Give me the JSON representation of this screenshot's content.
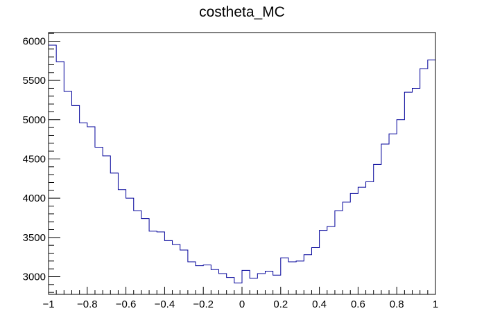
{
  "chart_data": {
    "type": "histogram-step",
    "title": "costheta_MC",
    "xlabel": "",
    "ylabel": "",
    "xlim": [
      -1,
      1
    ],
    "ylim": [
      2775,
      6110
    ],
    "x_ticks": [
      -1,
      -0.8,
      -0.6,
      -0.4,
      -0.2,
      0,
      0.2,
      0.4,
      0.6,
      0.8,
      1
    ],
    "x_tick_labels": [
      "−1",
      "−0.8",
      "−0.6",
      "−0.4",
      "−0.2",
      "0",
      "0.2",
      "0.4",
      "0.6",
      "0.8",
      "1"
    ],
    "y_ticks": [
      3000,
      3500,
      4000,
      4500,
      5000,
      5500,
      6000
    ],
    "y_tick_labels": [
      "3000",
      "3500",
      "4000",
      "4500",
      "5000",
      "5500",
      "6000"
    ],
    "bin_edges_start": -1,
    "bin_width": 0.04,
    "values": [
      5950,
      5740,
      5360,
      5180,
      4960,
      4910,
      4650,
      4540,
      4320,
      4110,
      4000,
      3840,
      3740,
      3580,
      3570,
      3460,
      3410,
      3340,
      3190,
      3140,
      3150,
      3090,
      3040,
      2990,
      2920,
      3080,
      2980,
      3040,
      3070,
      3020,
      3240,
      3190,
      3200,
      3280,
      3370,
      3590,
      3640,
      3840,
      3950,
      4060,
      4140,
      4210,
      4430,
      4690,
      4820,
      5000,
      5350,
      5400,
      5650,
      5760
    ],
    "line_color": "#000099",
    "grid": false,
    "legend": "none"
  }
}
